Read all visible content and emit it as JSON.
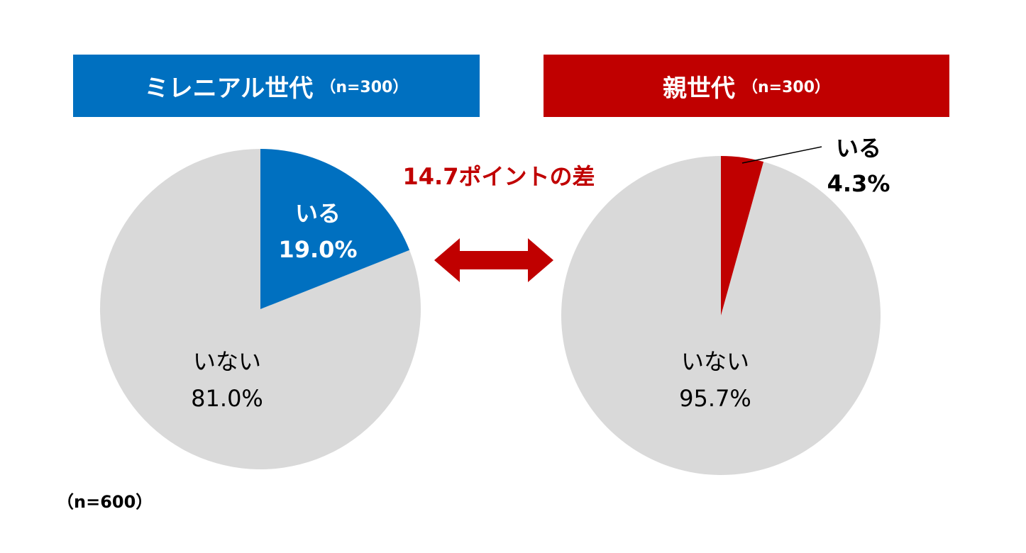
{
  "colors": {
    "millennial": "#0070C0",
    "parent": "#C00000",
    "remainder": "#D9D9D9",
    "diff_text": "#C00000"
  },
  "chart_data": [
    {
      "type": "pie",
      "title": "ミレニアル世代",
      "sample": "（n=300）",
      "slices": [
        {
          "label": "いる",
          "value": 19.0,
          "value_label": "19.0%"
        },
        {
          "label": "いない",
          "value": 81.0,
          "value_label": "81.0%"
        }
      ]
    },
    {
      "type": "pie",
      "title": "親世代",
      "sample": "（n=300）",
      "slices": [
        {
          "label": "いる",
          "value": 4.3,
          "value_label": "4.3%"
        },
        {
          "label": "いない",
          "value": 95.7,
          "value_label": "95.7%"
        }
      ]
    }
  ],
  "comparison": {
    "text": "14.7ポイントの差"
  },
  "footnote": "（n=600）"
}
